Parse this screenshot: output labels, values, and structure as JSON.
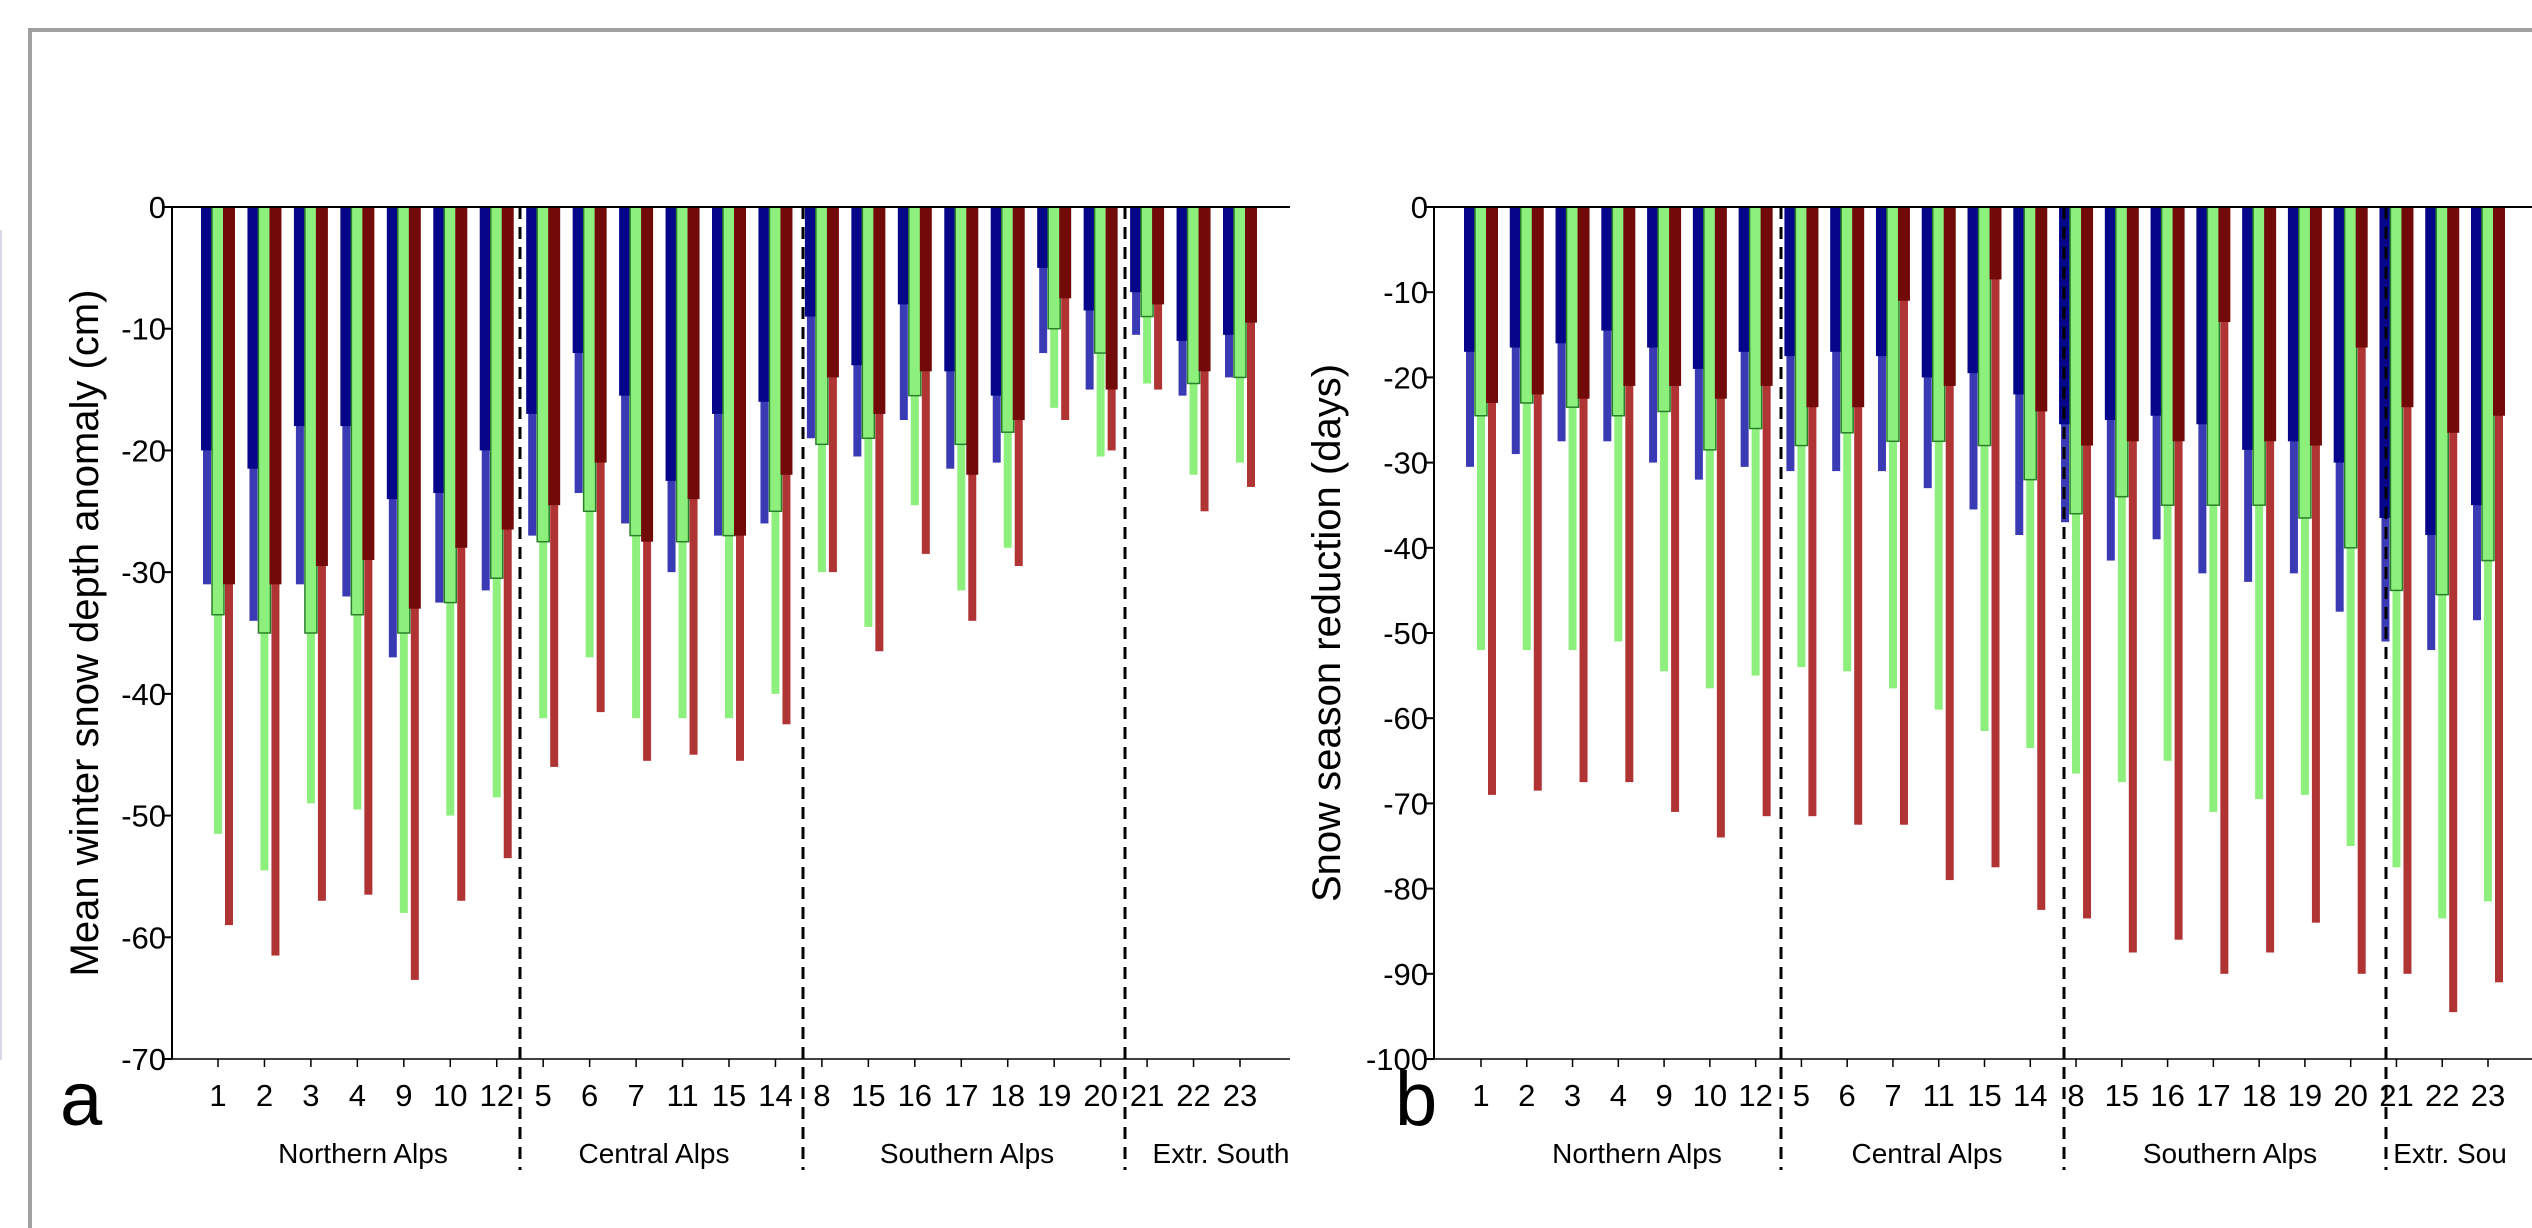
{
  "colors": {
    "dark_blue": "#06068a",
    "light_blue": "#3a3ab4",
    "dark_green": "#2a802a",
    "light_green": "#8ef07c",
    "dark_red": "#720a0a",
    "light_red": "#b03434"
  },
  "chart_data": [
    {
      "type": "bar",
      "panel_label": "a",
      "ylabel": "Mean winter snow depth anomaly (cm)",
      "ylim": [
        -70,
        0
      ],
      "yticks": [
        0,
        -10,
        -20,
        -30,
        -40,
        -50,
        -60,
        -70
      ],
      "categories": [
        "1",
        "2",
        "3",
        "4",
        "9",
        "10",
        "12",
        "5",
        "6",
        "7",
        "11",
        "15",
        "14",
        "8",
        "15",
        "16",
        "17",
        "18",
        "19",
        "20",
        "21",
        "22",
        "23"
      ],
      "regions": [
        {
          "name": "Northern Alps",
          "count": 7
        },
        {
          "name": "Central Alps",
          "count": 6
        },
        {
          "name": "Southern Alps",
          "count": 7
        },
        {
          "name": "Extr. South",
          "count": 3
        }
      ],
      "series": [
        {
          "values": [
            -20,
            -21.5,
            -18,
            -18,
            -24,
            -23.5,
            -20,
            -17,
            -12,
            -15.5,
            -22.5,
            -17,
            -16,
            -9,
            -13,
            -8,
            -13.5,
            -15.5,
            -5,
            -8.5,
            -7,
            -11,
            -10.5
          ]
        },
        {
          "values": [
            -31,
            -34,
            -31,
            -32,
            -37,
            -32.5,
            -31.5,
            -27,
            -23.5,
            -26,
            -30,
            -27,
            -26,
            -19,
            -20.5,
            -17.5,
            -21.5,
            -21,
            -12,
            -15,
            -10.5,
            -15.5,
            -14
          ]
        },
        {
          "values": [
            -33.5,
            -35,
            -35,
            -33.5,
            -35,
            -32.5,
            -30.5,
            -27.5,
            -25,
            -27,
            -27.5,
            -27,
            -25,
            -19.5,
            -19,
            -15.5,
            -19.5,
            -18.5,
            -10,
            -12,
            -9,
            -14.5,
            -14
          ]
        },
        {
          "values": [
            -51.5,
            -54.5,
            -49,
            -49.5,
            -58,
            -50,
            -48.5,
            -42,
            -37,
            -42,
            -42,
            -42,
            -40,
            -30,
            -34.5,
            -24.5,
            -31.5,
            -28,
            -16.5,
            -20.5,
            -14.5,
            -22,
            -21
          ]
        },
        {
          "values": [
            -31,
            -31,
            -29.5,
            -29,
            -33,
            -28,
            -26.5,
            -24.5,
            -21,
            -27.5,
            -24,
            -27,
            -22,
            -14,
            -17,
            -13.5,
            -22,
            -17.5,
            -7.5,
            -15,
            -8,
            -13.5,
            -9.5
          ]
        },
        {
          "values": [
            -59,
            -61.5,
            -57,
            -56.5,
            -63.5,
            -57,
            -53.5,
            -46,
            -41.5,
            -45.5,
            -45,
            -45.5,
            -42.5,
            -30,
            -36.5,
            -28.5,
            -34,
            -29.5,
            -17.5,
            -20,
            -15,
            -25,
            -23
          ]
        }
      ]
    },
    {
      "type": "bar",
      "panel_label": "b",
      "ylabel": "Snow season reduction (days)",
      "ylim": [
        -100,
        0
      ],
      "yticks": [
        0,
        -10,
        -20,
        -30,
        -40,
        -50,
        -60,
        -70,
        -80,
        -90,
        -100
      ],
      "categories": [
        "1",
        "2",
        "3",
        "4",
        "9",
        "10",
        "12",
        "5",
        "6",
        "7",
        "11",
        "15",
        "14",
        "8",
        "15",
        "16",
        "17",
        "18",
        "19",
        "20",
        "21",
        "22",
        "23"
      ],
      "regions": [
        {
          "name": "Northern Alps",
          "count": 7
        },
        {
          "name": "Central Alps",
          "count": 6
        },
        {
          "name": "Southern Alps",
          "count": 7
        },
        {
          "name": "Extr. Sou",
          "count": 3
        }
      ],
      "series": [
        {
          "values": [
            -17,
            -16.5,
            -16,
            -14.5,
            -16.5,
            -19,
            -17,
            -17.5,
            -17,
            -17.5,
            -20,
            -19.5,
            -22,
            -25.5,
            -25,
            -24.5,
            -25.5,
            -28.5,
            -27.5,
            -30,
            -36.5,
            -38.5,
            -35
          ]
        },
        {
          "values": [
            -30.5,
            -29,
            -27.5,
            -27.5,
            -30,
            -32,
            -30.5,
            -31,
            -31,
            -31,
            -33,
            -35.5,
            -38.5,
            -37,
            -41.5,
            -39,
            -43,
            -44,
            -43,
            -47.5,
            -51,
            -52,
            -48.5
          ]
        },
        {
          "values": [
            -24.5,
            -23,
            -23.5,
            -24.5,
            -24,
            -28.5,
            -26,
            -28,
            -26.5,
            -27.5,
            -27.5,
            -28,
            -32,
            -36,
            -34,
            -35,
            -35,
            -35,
            -36.5,
            -40,
            -45,
            -45.5,
            -41.5
          ]
        },
        {
          "values": [
            -52,
            -52,
            -52,
            -51,
            -54.5,
            -56.5,
            -55,
            -54,
            -54.5,
            -56.5,
            -59,
            -61.5,
            -63.5,
            -66.5,
            -67.5,
            -65,
            -71,
            -69.5,
            -69,
            -75,
            -77.5,
            -83.5,
            -81.5
          ]
        },
        {
          "values": [
            -23,
            -22,
            -22.5,
            -21,
            -21,
            -22.5,
            -21,
            -23.5,
            -23.5,
            -11,
            -21,
            -8.5,
            -24,
            -28,
            -27.5,
            -27.5,
            -13.5,
            -27.5,
            -28,
            -16.5,
            -23.5,
            -26.5,
            -24.5
          ]
        },
        {
          "values": [
            -69,
            -68.5,
            -67.5,
            -67.5,
            -71,
            -74,
            -71.5,
            -71.5,
            -72.5,
            -72.5,
            -79,
            -77.5,
            -82.5,
            -83.5,
            -87.5,
            -86,
            -90,
            -87.5,
            -84,
            -90,
            -90,
            -94.5,
            -91
          ]
        }
      ]
    }
  ]
}
